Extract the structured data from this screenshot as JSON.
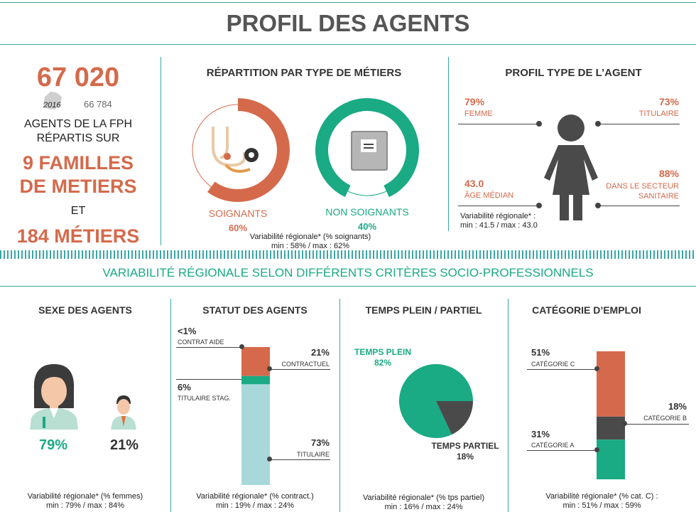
{
  "title": "PROFIL DES AGENTS",
  "colors": {
    "orange": "#d46a4b",
    "green": "#1aaa84",
    "dark": "#4a4a4a",
    "lightblue": "#a8d8da",
    "teal": "#3aa6a6"
  },
  "summary": {
    "agents_total": "67 020",
    "year_label": "2016",
    "agents_prev": "66 784",
    "line1": "AGENTS DE LA FPH",
    "line2": "RÉPARTIS SUR",
    "families_line1": "9 FAMILLES",
    "families_line2": "DE METIERS",
    "and": "ET",
    "metiers": "184 MÉTIERS"
  },
  "repartition": {
    "title": "RÉPARTITION PAR TYPE DE MÉTIERS",
    "soignants_label": "SOIGNANTS",
    "soignants_pct": "60%",
    "non_soignants_label": "NON SOIGNANTS",
    "non_soignants_pct": "40%",
    "variability_line1": "Variabilité régionale* (% soignants)",
    "variability_line2": "min : 58% / max : 62%",
    "icons": [
      "stethoscope-icon",
      "book-icon"
    ]
  },
  "profil_type": {
    "title": "PROFIL TYPE DE L’AGENT",
    "femme_pct": "79%",
    "femme_label": "FEMME",
    "titulaire_pct": "73%",
    "titulaire_label": "TITULAIRE",
    "age_value": "43.0",
    "age_label": "ÂGE MÉDIAN",
    "sanitaire_pct": "88%",
    "sanitaire_label1": "DANS LE SECTEUR",
    "sanitaire_label2": "SANITAIRE",
    "variability_line1": "Variabilité régionale* :",
    "variability_line2": "min : 41.5 / max : 43.0",
    "icon": "woman-icon"
  },
  "variability_title": "VARIABILITÉ RÉGIONALE SELON DIFFÉRENTS CRITÈRES SOCIO-PROFESSIONNELS",
  "sexe": {
    "title": "SEXE DES AGENTS",
    "female_pct": "79%",
    "male_pct": "21%",
    "variability_line1": "Variabilité régionale* (% femmes)",
    "variability_line2": "min : 79% / max : 84%",
    "icons": [
      "female-agent-icon",
      "male-agent-icon"
    ]
  },
  "statut": {
    "title": "STATUT DES AGENTS",
    "contrat_aide_pct": "<1%",
    "contrat_aide_label": "CONTRAT AIDE",
    "contractuel_pct": "21%",
    "contractuel_label": "CONTRACTUEL",
    "stag_pct": "6%",
    "stag_label": "TITULAIRE STAG.",
    "titulaire_pct": "73%",
    "titulaire_label": "TITULAIRE",
    "variability_line1": "Variabilité régionale* (% contract.)",
    "variability_line2": "min : 19% / max : 24%"
  },
  "temps": {
    "title": "TEMPS PLEIN / PARTIEL",
    "plein_label": "TEMPS PLEIN",
    "plein_pct": "82%",
    "partiel_label": "TEMPS PARTIEL",
    "partiel_pct": "18%",
    "variability_line1": "Variabilité régionale* (% tps partiel)",
    "variability_line2": "min : 16% / max : 24%"
  },
  "categorie": {
    "title": "CATÉGORIE D’EMPLOI",
    "c_pct": "51%",
    "c_label": "CATÉGORIE C",
    "b_pct": "18%",
    "b_label": "CATÉGORIE B",
    "a_pct": "31%",
    "a_label": "CATÉGORIE A",
    "variability_line1": "Variabilité régionale* (% cat. C) :",
    "variability_line2": "min : 51% / max : 59%"
  },
  "chart_data": [
    {
      "type": "pie",
      "title": "RÉPARTITION PAR TYPE DE MÉTIERS",
      "categories": [
        "SOIGNANTS",
        "NON SOIGNANTS"
      ],
      "values": [
        60,
        40
      ]
    },
    {
      "type": "bar",
      "title": "SEXE DES AGENTS",
      "values": [
        79,
        21
      ]
    },
    {
      "type": "bar",
      "title": "STATUT DES AGENTS",
      "categories": [
        "CONTRAT AIDE",
        "CONTRACTUEL",
        "TITULAIRE STAG.",
        "TITULAIRE"
      ],
      "values": [
        0.5,
        21,
        6,
        73
      ]
    },
    {
      "type": "pie",
      "title": "TEMPS PLEIN / PARTIEL",
      "categories": [
        "TEMPS PLEIN",
        "TEMPS PARTIEL"
      ],
      "values": [
        82,
        18
      ]
    },
    {
      "type": "bar",
      "title": "CATÉGORIE D’EMPLOI",
      "categories": [
        "CATÉGORIE C",
        "CATÉGORIE B",
        "CATÉGORIE A"
      ],
      "values": [
        51,
        18,
        31
      ]
    }
  ]
}
